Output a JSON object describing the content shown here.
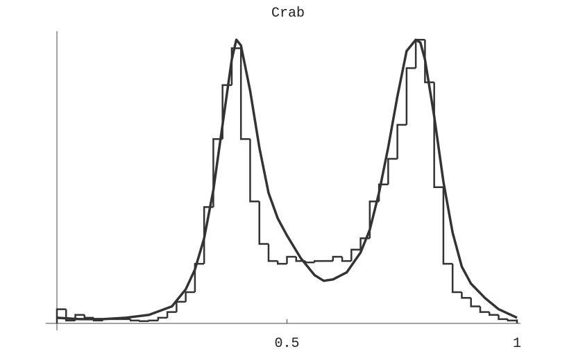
{
  "chart_data": {
    "type": "histogram",
    "title": "Crab",
    "bins": [
      0,
      0.02,
      0.04,
      0.06,
      0.08,
      0.1,
      0.12,
      0.14,
      0.16,
      0.18,
      0.2,
      0.22,
      0.24,
      0.26,
      0.28,
      0.3,
      0.32,
      0.34,
      0.36,
      0.38,
      0.4,
      0.42,
      0.44,
      0.46,
      0.48,
      0.5,
      0.52,
      0.54,
      0.56,
      0.58,
      0.6,
      0.62,
      0.64,
      0.66,
      0.68,
      0.7,
      0.72,
      0.74,
      0.76,
      0.78,
      0.8,
      0.82,
      0.84,
      0.86,
      0.88,
      0.9,
      0.92,
      0.94,
      0.96,
      0.98,
      1
    ],
    "values": [
      0.05,
      0.01,
      0.03,
      0.02,
      0.01,
      0.015,
      0.015,
      0.015,
      0.01,
      0.008,
      0.01,
      0.02,
      0.04,
      0.076,
      0.11,
      0.21,
      0.41,
      0.65,
      0.84,
      0.97,
      0.65,
      0.43,
      0.28,
      0.22,
      0.21,
      0.235,
      0.22,
      0.215,
      0.22,
      0.22,
      0.235,
      0.22,
      0.26,
      0.3,
      0.43,
      0.49,
      0.58,
      0.7,
      0.9,
      1.0,
      0.85,
      0.48,
      0.21,
      0.11,
      0.09,
      0.06,
      0.04,
      0.03,
      0.015,
      0.01
    ],
    "color": "#333333",
    "overlay": {
      "type": "line",
      "x": [
        0,
        0.05,
        0.1,
        0.15,
        0.2,
        0.25,
        0.28,
        0.3,
        0.32,
        0.34,
        0.36,
        0.38,
        0.39,
        0.4,
        0.42,
        0.44,
        0.46,
        0.48,
        0.5,
        0.53,
        0.56,
        0.58,
        0.6,
        0.63,
        0.66,
        0.68,
        0.7,
        0.72,
        0.74,
        0.76,
        0.78,
        0.79,
        0.8,
        0.82,
        0.84,
        0.86,
        0.88,
        0.9,
        0.93,
        0.96,
        1.0
      ],
      "values": [
        0.02,
        0.015,
        0.015,
        0.02,
        0.03,
        0.06,
        0.12,
        0.19,
        0.3,
        0.47,
        0.7,
        0.93,
        1.0,
        0.98,
        0.82,
        0.62,
        0.46,
        0.37,
        0.31,
        0.23,
        0.17,
        0.15,
        0.155,
        0.18,
        0.25,
        0.33,
        0.46,
        0.62,
        0.8,
        0.96,
        1.0,
        0.99,
        0.93,
        0.73,
        0.5,
        0.32,
        0.2,
        0.14,
        0.09,
        0.05,
        0.02
      ],
      "color": "#333333"
    },
    "xlim": [
      0,
      1
    ],
    "ylim": [
      0,
      1.03
    ],
    "xticks": [
      0.5,
      1
    ]
  }
}
